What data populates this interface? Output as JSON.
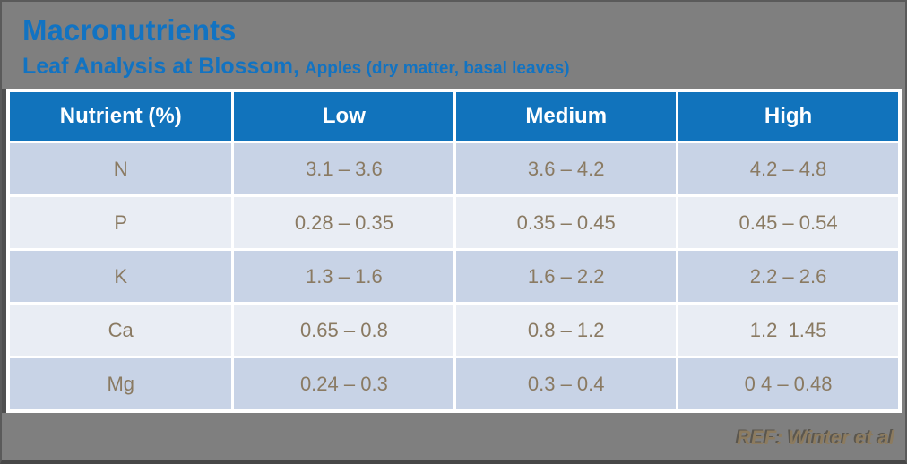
{
  "slide": {
    "title": "Macronutrients",
    "subtitle": {
      "primary": "Leaf Analysis at Blossom,",
      "secondary": "Apples (dry matter, basal leaves)"
    },
    "reference": "REF: Winter et al"
  },
  "colors": {
    "background": "#7F7F7F",
    "accent_blue": "#1273C2",
    "header_bg": "#1173BC",
    "row_alt_dark": "#C8D3E6",
    "row_alt_light": "#E9EDF4",
    "cell_text": "#8A7A62",
    "reference_text": "#8C7B5F"
  },
  "table": {
    "columns": [
      "Nutrient (%)",
      "Low",
      "Medium",
      "High"
    ],
    "rows": [
      {
        "nutrient": "N",
        "low": "3.1 – 3.6",
        "medium": "3.6 – 4.2",
        "high": "4.2 – 4.8"
      },
      {
        "nutrient": "P",
        "low": "0.28 – 0.35",
        "medium": "0.35 – 0.45",
        "high": "0.45 – 0.54"
      },
      {
        "nutrient": "K",
        "low": "1.3 – 1.6",
        "medium": "1.6 – 2.2",
        "high": "2.2 – 2.6"
      },
      {
        "nutrient": "Ca",
        "low": "0.65 – 0.8",
        "medium": "0.8 – 1.2",
        "high": "1.2  1.45"
      },
      {
        "nutrient": "Mg",
        "low": "0.24 – 0.3",
        "medium": "0.3 – 0.4",
        "high": "0 4 – 0.48"
      }
    ]
  }
}
